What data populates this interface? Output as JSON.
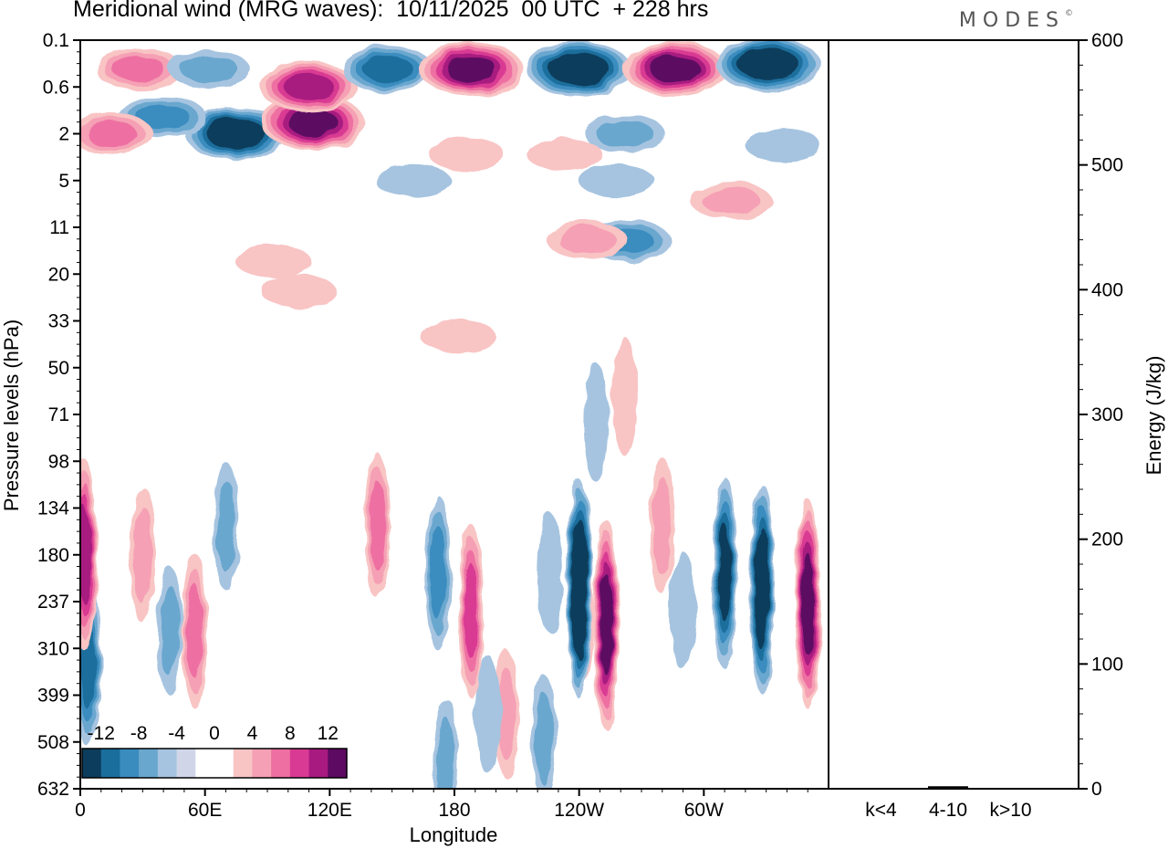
{
  "header": {
    "title": "Meridional wind (MRG waves):  10/11/2025  00 UTC  + 228 hrs",
    "brand": "MODES",
    "brand_mark": "©"
  },
  "chart_data": [
    {
      "type": "heatmap",
      "title": "Meridional wind (MRG waves):  10/11/2025  00 UTC  + 228 hrs",
      "xlabel": "Longitude",
      "ylabel": "Pressure levels (hPa)",
      "x_ticks": [
        "0",
        "60E",
        "120E",
        "180",
        "120W",
        "60W"
      ],
      "y_ticks": [
        "0.1",
        "0.6",
        "2",
        "5",
        "11",
        "20",
        "33",
        "50",
        "71",
        "98",
        "134",
        "180",
        "237",
        "310",
        "399",
        "508",
        "632"
      ],
      "colorbar": {
        "labels": [
          "-12",
          "-8",
          "-4",
          "0",
          "4",
          "8",
          "12"
        ],
        "colors": [
          "#0d3d5c",
          "#1a6e9c",
          "#3a8cbf",
          "#6aa7cf",
          "#a6c4e0",
          "#d0d6e8",
          "#ffffff",
          "#ffffff",
          "#f9c4c4",
          "#f5a0b4",
          "#ee6fa2",
          "#d93a93",
          "#a81a80",
          "#5c0a62"
        ]
      },
      "features": [
        {
          "lon": 75,
          "lev": 2,
          "value": -13
        },
        {
          "lon": 40,
          "lev": 1.3,
          "value": -8
        },
        {
          "lon": 112,
          "lev": 1.5,
          "value": 14
        },
        {
          "lon": 110,
          "lev": 0.6,
          "value": 12
        },
        {
          "lon": 15,
          "lev": 2,
          "value": 7
        },
        {
          "lon": 28,
          "lev": 0.3,
          "value": 8
        },
        {
          "lon": 62,
          "lev": 0.3,
          "value": -6
        },
        {
          "lon": 148,
          "lev": 0.3,
          "value": -10
        },
        {
          "lon": 188,
          "lev": 0.3,
          "value": 14
        },
        {
          "lon": 240,
          "lev": 0.3,
          "value": -14
        },
        {
          "lon": 286,
          "lev": 0.3,
          "value": 14
        },
        {
          "lon": 331,
          "lev": 0.25,
          "value": -14
        },
        {
          "lon": 186,
          "lev": 3,
          "value": 4
        },
        {
          "lon": 160,
          "lev": 5,
          "value": -4
        },
        {
          "lon": 258,
          "lev": 5,
          "value": -4
        },
        {
          "lon": 262,
          "lev": 2,
          "value": -6
        },
        {
          "lon": 313,
          "lev": 7,
          "value": 6
        },
        {
          "lon": 233,
          "lev": 3,
          "value": 4
        },
        {
          "lon": 263,
          "lev": 13,
          "value": -8
        },
        {
          "lon": 244,
          "lev": 13,
          "value": 6
        },
        {
          "lon": 338,
          "lev": 2.5,
          "value": -4
        },
        {
          "lon": 30,
          "lev": 180,
          "value": 6
        },
        {
          "lon": 43,
          "lev": 280,
          "value": -5
        },
        {
          "lon": 55,
          "lev": 280,
          "value": 8
        },
        {
          "lon": 70,
          "lev": 150,
          "value": -5
        },
        {
          "lon": 4,
          "lev": 340,
          "value": -9
        },
        {
          "lon": 143,
          "lev": 150,
          "value": 7
        },
        {
          "lon": 172,
          "lev": 200,
          "value": -8
        },
        {
          "lon": 188,
          "lev": 250,
          "value": 10
        },
        {
          "lon": 226,
          "lev": 200,
          "value": -4
        },
        {
          "lon": 241,
          "lev": 260,
          "value": 6
        },
        {
          "lon": 240,
          "lev": 220,
          "value": -15
        },
        {
          "lon": 253,
          "lev": 270,
          "value": 14
        },
        {
          "lon": 280,
          "lev": 150,
          "value": 6
        },
        {
          "lon": 310,
          "lev": 200,
          "value": -12
        },
        {
          "lon": 328,
          "lev": 220,
          "value": -14
        },
        {
          "lon": 350,
          "lev": 240,
          "value": 14
        },
        {
          "lon": 290,
          "lev": 250,
          "value": -4
        },
        {
          "lon": 2,
          "lev": 180,
          "value": 12
        },
        {
          "lon": 205,
          "lev": 440,
          "value": 5
        },
        {
          "lon": 223,
          "lev": 500,
          "value": -5
        },
        {
          "lon": 176,
          "lev": 570,
          "value": -6
        },
        {
          "lon": 248,
          "lev": 75,
          "value": -4
        },
        {
          "lon": 262,
          "lev": 62,
          "value": 4
        },
        {
          "lon": 93,
          "lev": 17,
          "value": 4
        },
        {
          "lon": 105,
          "lev": 24,
          "value": 4
        },
        {
          "lon": 182,
          "lev": 38,
          "value": 4
        },
        {
          "lon": 196,
          "lev": 440,
          "value": -4
        }
      ]
    },
    {
      "type": "bar",
      "title": "",
      "categories": [
        "k<4",
        "4-10",
        "k>10"
      ],
      "values": [
        0.5,
        2,
        0.5
      ],
      "ylabel": "Energy (J/kg)",
      "ylim": [
        0,
        600
      ],
      "y_ticks": [
        "0",
        "100",
        "200",
        "300",
        "400",
        "500",
        "600"
      ]
    }
  ]
}
